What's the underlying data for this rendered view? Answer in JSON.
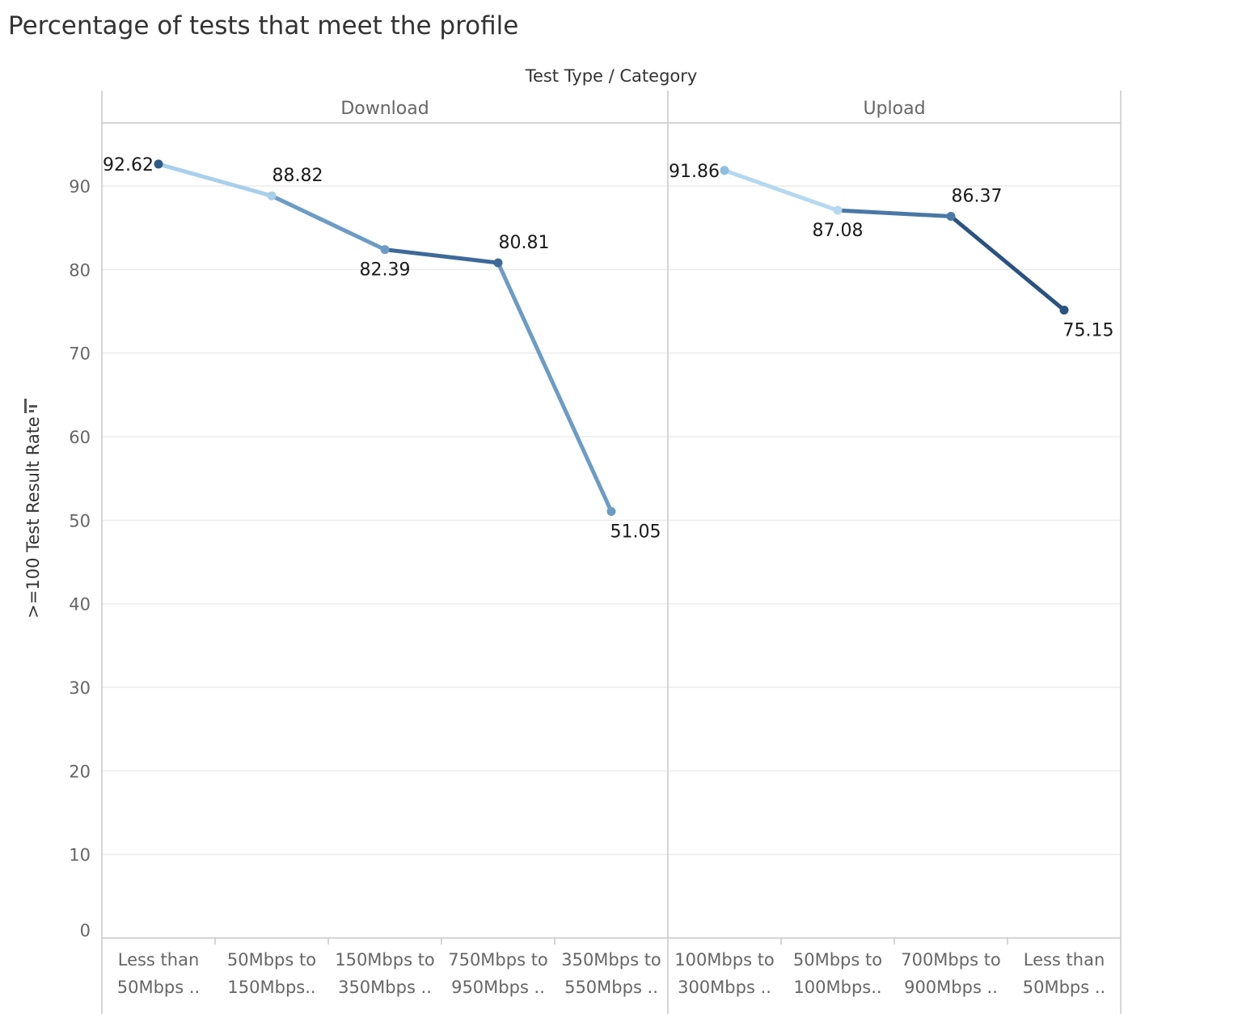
{
  "title": "Percentage of tests that meet the profile",
  "colors": {
    "dark": "#2f5b88",
    "mid": "#5b8cb8",
    "light": "#a9cfea",
    "grid": "#ececec",
    "border": "#c8c8c8"
  },
  "chart_data": {
    "type": "line",
    "title": "Percentage of tests that meet the profile",
    "column_header": "Test Type / Category",
    "ylabel": ">=100 Test Result Rate",
    "ylim": [
      0,
      98
    ],
    "yticks": [
      0,
      10,
      20,
      30,
      40,
      50,
      60,
      70,
      80,
      90
    ],
    "grid": true,
    "panels": [
      {
        "name": "Download",
        "categories": [
          [
            "Less than",
            "50Mbps .."
          ],
          [
            "50Mbps to",
            "150Mbps.."
          ],
          [
            "150Mbps to",
            "350Mbps .."
          ],
          [
            "750Mbps to",
            "950Mbps .."
          ],
          [
            "350Mbps to",
            "550Mbps .."
          ]
        ],
        "values": [
          92.62,
          88.82,
          82.39,
          80.81,
          51.05
        ],
        "point_colors": [
          "#2f5b88",
          "#a9cfea",
          "#6c9cc6",
          "#3d6a98",
          "#6c9cc6"
        ],
        "label_positions": [
          "left",
          "above",
          "below",
          "above",
          "below"
        ]
      },
      {
        "name": "Upload",
        "categories": [
          [
            "100Mbps to",
            "300Mbps .."
          ],
          [
            "50Mbps to",
            "100Mbps.."
          ],
          [
            "700Mbps to",
            "900Mbps .."
          ],
          [
            "Less than",
            "50Mbps .."
          ]
        ],
        "values": [
          91.86,
          87.08,
          86.37,
          75.15
        ],
        "point_colors": [
          "#8dbfe0",
          "#b4d8ef",
          "#4a78a6",
          "#2a5282"
        ],
        "label_positions": [
          "left",
          "below",
          "above",
          "below"
        ]
      }
    ]
  }
}
